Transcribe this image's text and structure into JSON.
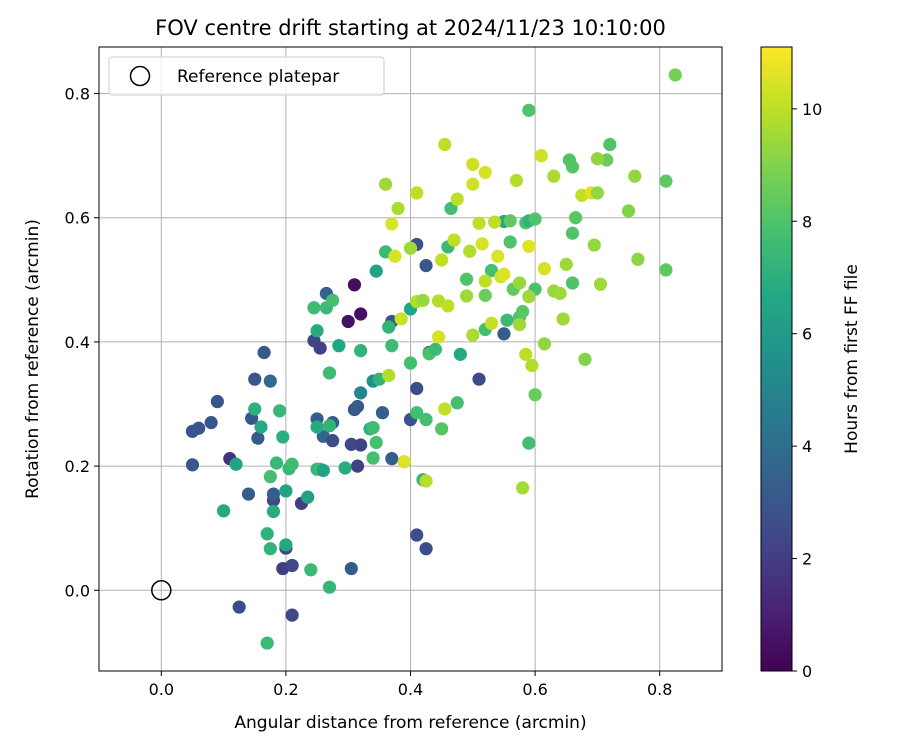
{
  "chart_data": {
    "type": "scatter",
    "title": "FOV centre drift starting at 2024/11/23 10:10:00",
    "xlabel": "Angular distance from reference (arcmin)",
    "ylabel": "Rotation from reference (arcmin)",
    "xlim": [
      -0.1,
      0.9
    ],
    "ylim": [
      -0.13,
      0.875
    ],
    "xticks": [
      0.0,
      0.2,
      0.4,
      0.6,
      0.8
    ],
    "xtick_labels": [
      "0.0",
      "0.2",
      "0.4",
      "0.6",
      "0.8"
    ],
    "yticks": [
      0.0,
      0.2,
      0.4,
      0.6,
      0.8
    ],
    "ytick_labels": [
      "0.0",
      "0.2",
      "0.4",
      "0.6",
      "0.8"
    ],
    "grid": true,
    "colorbar": {
      "label": "Hours from first FF file",
      "colormap": "viridis",
      "range": [
        0,
        11.1
      ],
      "ticks": [
        0,
        2,
        4,
        6,
        8,
        10
      ],
      "tick_labels": [
        "0",
        "2",
        "4",
        "6",
        "8",
        "10"
      ]
    },
    "legend": {
      "position": "upper-left",
      "entries": [
        {
          "label": "Reference platepar",
          "marker": "open-circle",
          "x": 0.0,
          "y": 0.0
        }
      ]
    },
    "points": [
      [
        0.3,
        0.433,
        0.5
      ],
      [
        0.31,
        0.492,
        0.4
      ],
      [
        0.32,
        0.445,
        0.5
      ],
      [
        0.11,
        0.212,
        1.6
      ],
      [
        0.05,
        0.202,
        3.0
      ],
      [
        0.05,
        0.256,
        2.9
      ],
      [
        0.06,
        0.261,
        2.9
      ],
      [
        0.08,
        0.27,
        3.0
      ],
      [
        0.09,
        0.304,
        2.9
      ],
      [
        0.125,
        -0.027,
        2.6
      ],
      [
        0.14,
        0.155,
        3.2
      ],
      [
        0.145,
        0.277,
        3.0
      ],
      [
        0.15,
        0.34,
        3.0
      ],
      [
        0.155,
        0.245,
        3.1
      ],
      [
        0.165,
        0.383,
        3.0
      ],
      [
        0.175,
        0.337,
        3.8
      ],
      [
        0.18,
        0.145,
        2.4
      ],
      [
        0.18,
        0.155,
        3.3
      ],
      [
        0.195,
        0.035,
        2.0
      ],
      [
        0.2,
        0.068,
        2.1
      ],
      [
        0.21,
        0.04,
        2.3
      ],
      [
        0.21,
        -0.04,
        2.4
      ],
      [
        0.225,
        0.14,
        2.0
      ],
      [
        0.245,
        0.402,
        2.3
      ],
      [
        0.25,
        0.276,
        3.2
      ],
      [
        0.255,
        0.39,
        2.1
      ],
      [
        0.26,
        0.248,
        3.7
      ],
      [
        0.265,
        0.478,
        3.4
      ],
      [
        0.275,
        0.241,
        2.6
      ],
      [
        0.275,
        0.27,
        3.3
      ],
      [
        0.305,
        0.235,
        2.4
      ],
      [
        0.31,
        0.291,
        3.1
      ],
      [
        0.315,
        0.296,
        3.1
      ],
      [
        0.315,
        0.2,
        2.1
      ],
      [
        0.32,
        0.234,
        2.2
      ],
      [
        0.305,
        0.035,
        3.2
      ],
      [
        0.37,
        0.433,
        2.9
      ],
      [
        0.355,
        0.286,
        3.3
      ],
      [
        0.37,
        0.212,
        3.3
      ],
      [
        0.41,
        0.557,
        2.7
      ],
      [
        0.425,
        0.523,
        3.0
      ],
      [
        0.43,
        0.383,
        3.0
      ],
      [
        0.41,
        0.325,
        2.6
      ],
      [
        0.4,
        0.275,
        2.8
      ],
      [
        0.41,
        0.089,
        2.6
      ],
      [
        0.425,
        0.067,
        2.6
      ],
      [
        0.51,
        0.34,
        2.4
      ],
      [
        0.55,
        0.413,
        3.2
      ],
      [
        0.1,
        0.128,
        6.7
      ],
      [
        0.12,
        0.203,
        6.4
      ],
      [
        0.15,
        0.292,
        7.1
      ],
      [
        0.16,
        0.263,
        6.7
      ],
      [
        0.17,
        0.091,
        7.1
      ],
      [
        0.17,
        -0.085,
        7.5
      ],
      [
        0.175,
        0.067,
        7.2
      ],
      [
        0.175,
        0.183,
        7.8
      ],
      [
        0.18,
        0.127,
        6.9
      ],
      [
        0.185,
        0.205,
        7.4
      ],
      [
        0.19,
        0.289,
        7.4
      ],
      [
        0.195,
        0.247,
        7.0
      ],
      [
        0.2,
        0.16,
        6.5
      ],
      [
        0.2,
        0.073,
        6.6
      ],
      [
        0.205,
        0.196,
        7.4
      ],
      [
        0.21,
        0.203,
        7.6
      ],
      [
        0.235,
        0.15,
        6.3
      ],
      [
        0.24,
        0.033,
        7.5
      ],
      [
        0.245,
        0.455,
        7.6
      ],
      [
        0.25,
        0.418,
        6.8
      ],
      [
        0.25,
        0.263,
        6.8
      ],
      [
        0.25,
        0.195,
        7.3
      ],
      [
        0.255,
        0.195,
        7.6
      ],
      [
        0.26,
        0.193,
        6.3
      ],
      [
        0.265,
        0.455,
        7.5
      ],
      [
        0.27,
        0.265,
        7.2
      ],
      [
        0.27,
        0.35,
        7.6
      ],
      [
        0.27,
        0.005,
        7.3
      ],
      [
        0.275,
        0.467,
        7.8
      ],
      [
        0.285,
        0.394,
        6.6
      ],
      [
        0.295,
        0.197,
        6.9
      ],
      [
        0.32,
        0.386,
        7.2
      ],
      [
        0.32,
        0.318,
        5.1
      ],
      [
        0.335,
        0.26,
        7.0
      ],
      [
        0.34,
        0.213,
        7.8
      ],
      [
        0.34,
        0.262,
        7.6
      ],
      [
        0.34,
        0.337,
        5.5
      ],
      [
        0.345,
        0.238,
        7.8
      ],
      [
        0.345,
        0.514,
        6.4
      ],
      [
        0.35,
        0.34,
        7.2
      ],
      [
        0.36,
        0.545,
        7.5
      ],
      [
        0.365,
        0.424,
        7.2
      ],
      [
        0.37,
        0.394,
        7.6
      ],
      [
        0.4,
        0.453,
        6.5
      ],
      [
        0.4,
        0.366,
        7.7
      ],
      [
        0.41,
        0.286,
        7.7
      ],
      [
        0.42,
        0.178,
        7.3
      ],
      [
        0.425,
        0.275,
        7.8
      ],
      [
        0.43,
        0.381,
        7.9
      ],
      [
        0.44,
        0.388,
        7.5
      ],
      [
        0.45,
        0.26,
        8.1
      ],
      [
        0.46,
        0.553,
        7.5
      ],
      [
        0.465,
        0.615,
        7.7
      ],
      [
        0.475,
        0.302,
        7.8
      ],
      [
        0.48,
        0.38,
        6.7
      ],
      [
        0.49,
        0.501,
        8.0
      ],
      [
        0.52,
        0.42,
        7.8
      ],
      [
        0.52,
        0.475,
        8.6
      ],
      [
        0.53,
        0.515,
        7.8
      ],
      [
        0.55,
        0.594,
        6.7
      ],
      [
        0.555,
        0.435,
        7.5
      ],
      [
        0.56,
        0.595,
        8.3
      ],
      [
        0.56,
        0.561,
        8.0
      ],
      [
        0.565,
        0.485,
        8.3
      ],
      [
        0.575,
        0.44,
        8.0
      ],
      [
        0.58,
        0.449,
        8.2
      ],
      [
        0.585,
        0.592,
        8.0
      ],
      [
        0.59,
        0.595,
        7.2
      ],
      [
        0.59,
        0.773,
        8.0
      ],
      [
        0.59,
        0.237,
        7.7
      ],
      [
        0.6,
        0.598,
        8.0
      ],
      [
        0.6,
        0.485,
        7.9
      ],
      [
        0.6,
        0.315,
        8.5
      ],
      [
        0.655,
        0.693,
        8.0
      ],
      [
        0.66,
        0.575,
        8.0
      ],
      [
        0.66,
        0.682,
        8.1
      ],
      [
        0.66,
        0.495,
        8.0
      ],
      [
        0.665,
        0.6,
        8.2
      ],
      [
        0.715,
        0.693,
        8.6
      ],
      [
        0.72,
        0.718,
        8.0
      ],
      [
        0.81,
        0.516,
        8.3
      ],
      [
        0.81,
        0.659,
        8.3
      ],
      [
        0.825,
        0.83,
        8.8
      ],
      [
        0.36,
        0.654,
        9.5
      ],
      [
        0.365,
        0.346,
        9.8
      ],
      [
        0.37,
        0.59,
        10.5
      ],
      [
        0.375,
        0.538,
        10.4
      ],
      [
        0.38,
        0.615,
        9.7
      ],
      [
        0.385,
        0.437,
        10.2
      ],
      [
        0.39,
        0.207,
        10.5
      ],
      [
        0.4,
        0.551,
        9.5
      ],
      [
        0.41,
        0.64,
        10.0
      ],
      [
        0.41,
        0.465,
        9.8
      ],
      [
        0.42,
        0.467,
        9.4
      ],
      [
        0.425,
        0.176,
        9.9
      ],
      [
        0.445,
        0.466,
        9.8
      ],
      [
        0.445,
        0.408,
        10.4
      ],
      [
        0.45,
        0.532,
        10.0
      ],
      [
        0.455,
        0.718,
        10.0
      ],
      [
        0.455,
        0.292,
        10.0
      ],
      [
        0.46,
        0.458,
        10.0
      ],
      [
        0.47,
        0.564,
        10.0
      ],
      [
        0.475,
        0.63,
        10.0
      ],
      [
        0.49,
        0.474,
        9.5
      ],
      [
        0.495,
        0.546,
        9.8
      ],
      [
        0.5,
        0.686,
        10.3
      ],
      [
        0.5,
        0.411,
        9.7
      ],
      [
        0.5,
        0.654,
        10.3
      ],
      [
        0.51,
        0.591,
        10.0
      ],
      [
        0.515,
        0.558,
        10.4
      ],
      [
        0.52,
        0.673,
        10.4
      ],
      [
        0.52,
        0.498,
        10.0
      ],
      [
        0.53,
        0.43,
        10.1
      ],
      [
        0.535,
        0.593,
        10.0
      ],
      [
        0.54,
        0.538,
        10.5
      ],
      [
        0.545,
        0.505,
        10.3
      ],
      [
        0.55,
        0.509,
        10.5
      ],
      [
        0.57,
        0.66,
        9.8
      ],
      [
        0.575,
        0.428,
        9.5
      ],
      [
        0.575,
        0.495,
        9.4
      ],
      [
        0.58,
        0.165,
        9.6
      ],
      [
        0.585,
        0.38,
        10.0
      ],
      [
        0.59,
        0.473,
        9.5
      ],
      [
        0.59,
        0.554,
        10.6
      ],
      [
        0.595,
        0.362,
        9.8
      ],
      [
        0.61,
        0.7,
        10.3
      ],
      [
        0.615,
        0.518,
        10.4
      ],
      [
        0.615,
        0.397,
        9.3
      ],
      [
        0.63,
        0.667,
        9.7
      ],
      [
        0.63,
        0.482,
        9.4
      ],
      [
        0.64,
        0.478,
        9.5
      ],
      [
        0.645,
        0.437,
        9.5
      ],
      [
        0.65,
        0.525,
        9.5
      ],
      [
        0.675,
        0.636,
        10.0
      ],
      [
        0.68,
        0.372,
        9.0
      ],
      [
        0.69,
        0.64,
        10.6
      ],
      [
        0.695,
        0.556,
        9.3
      ],
      [
        0.7,
        0.695,
        9.3
      ],
      [
        0.7,
        0.64,
        9.3
      ],
      [
        0.705,
        0.493,
        9.5
      ],
      [
        0.75,
        0.611,
        9.0
      ],
      [
        0.76,
        0.667,
        9.3
      ],
      [
        0.765,
        0.533,
        9.2
      ]
    ]
  }
}
